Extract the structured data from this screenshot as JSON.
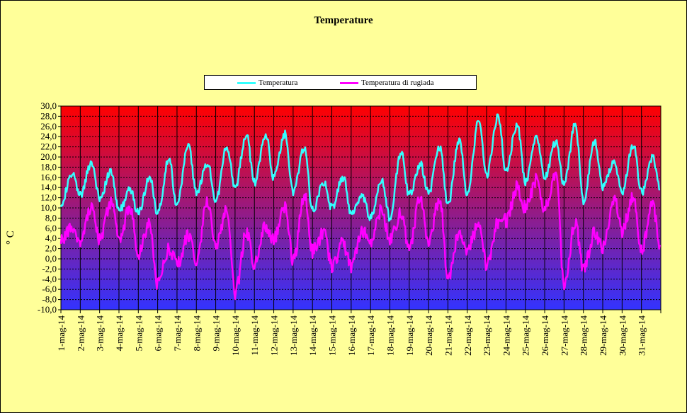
{
  "chart_data": {
    "type": "line",
    "title": "Temperature",
    "ylabel": "° C",
    "xlabel": "",
    "ylim": [
      -10,
      30
    ],
    "ytick_step": 2,
    "ytick_labels": [
      "30,0",
      "28,0",
      "26,0",
      "24,0",
      "22,0",
      "20,0",
      "18,0",
      "16,0",
      "14,0",
      "12,0",
      "10,0",
      "8,0",
      "6,0",
      "4,0",
      "2,0",
      "0,0",
      "-2,0",
      "-4,0",
      "-6,0",
      "-8,0",
      "-10,0"
    ],
    "categories": [
      "1-mag-14",
      "2-mag-14",
      "3-mag-14",
      "4-mag-14",
      "5-mag-14",
      "6-mag-14",
      "7-mag-14",
      "8-mag-14",
      "9-mag-14",
      "10-mag-14",
      "11-mag-14",
      "12-mag-14",
      "13-mag-14",
      "14-mag-14",
      "15-mag-14",
      "16-mag-14",
      "17-mag-14",
      "18-mag-14",
      "19-mag-14",
      "20-mag-14",
      "21-mag-14",
      "22-mag-14",
      "23-mag-14",
      "24-mag-14",
      "25-mag-14",
      "26-mag-14",
      "27-mag-14",
      "28-mag-14",
      "29-mag-14",
      "30-mag-14",
      "31-mag-14"
    ],
    "grid": true,
    "legend_position": "top-center",
    "background_gradient": {
      "top": "#ff0000",
      "bottom": "#3333ff"
    },
    "series": [
      {
        "name": "Temperatura",
        "color": "#33ffff",
        "daily_min": [
          11.0,
          12.5,
          12.0,
          9.5,
          9.0,
          9.0,
          10.5,
          13.0,
          11.5,
          14.0,
          15.0,
          16.0,
          13.0,
          9.5,
          10.0,
          9.0,
          8.0,
          8.0,
          12.5,
          13.0,
          10.5,
          12.5,
          16.5,
          17.5,
          15.0,
          16.0,
          14.5,
          11.5,
          14.0,
          13.0,
          13.0
        ],
        "daily_max": [
          16.5,
          19.0,
          17.0,
          13.5,
          16.0,
          19.5,
          22.5,
          19.0,
          22.0,
          24.5,
          24.5,
          24.5,
          22.0,
          15.0,
          16.0,
          12.0,
          15.5,
          21.0,
          18.5,
          22.0,
          23.5,
          27.0,
          28.0,
          26.5,
          24.0,
          23.0,
          26.5,
          23.0,
          19.0,
          22.5,
          20.0
        ]
      },
      {
        "name": "Temperatura di rugiada",
        "color": "#ff00ff",
        "daily_min": [
          3.5,
          3.5,
          4.0,
          4.0,
          1.0,
          -5.0,
          -1.0,
          -0.5,
          2.5,
          -7.0,
          -1.0,
          4.0,
          -0.5,
          1.5,
          -1.5,
          -1.5,
          3.5,
          3.5,
          2.0,
          3.0,
          -3.5,
          2.0,
          -1.0,
          7.5,
          10.0,
          10.0,
          -5.0,
          -2.0,
          2.0,
          5.5,
          2.0
        ],
        "daily_max": [
          6.5,
          10.0,
          11.0,
          10.0,
          7.0,
          2.0,
          4.5,
          11.5,
          10.0,
          5.0,
          6.5,
          10.0,
          12.5,
          5.0,
          3.0,
          5.5,
          9.5,
          9.0,
          12.0,
          12.0,
          5.0,
          6.5,
          7.0,
          14.0,
          15.5,
          16.0,
          7.0,
          5.0,
          12.0,
          12.5,
          10.5
        ]
      }
    ]
  }
}
